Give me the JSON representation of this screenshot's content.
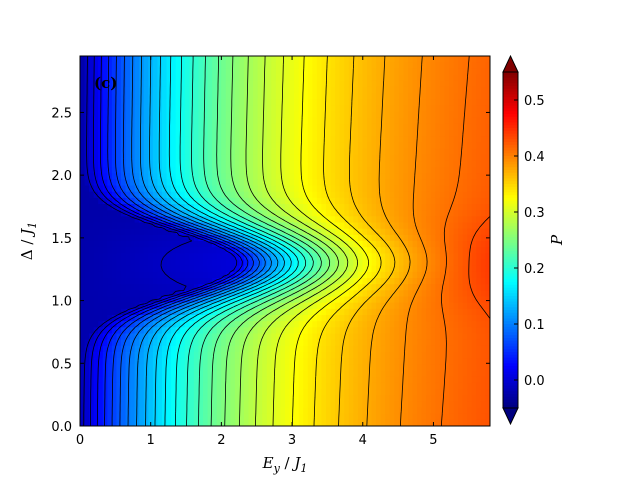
{
  "chart_data": {
    "type": "heatmap",
    "panel_label": "(c)",
    "xlabel": "E_y / J_1",
    "ylabel": "Δ / J_1",
    "colorbar_label": "P",
    "xlim": [
      0,
      5.8
    ],
    "ylim": [
      0,
      2.95
    ],
    "x_ticks": [
      0,
      1,
      2,
      3,
      4,
      5
    ],
    "x_tick_labels": [
      "0",
      "1",
      "2",
      "3",
      "4",
      "5"
    ],
    "y_ticks": [
      0.0,
      0.5,
      1.0,
      1.5,
      2.0,
      2.5
    ],
    "y_tick_labels": [
      "0.0",
      "0.5",
      "1.0",
      "1.5",
      "2.0",
      "2.5"
    ],
    "colorbar_ticks": [
      0.0,
      0.1,
      0.2,
      0.3,
      0.4,
      0.5
    ],
    "colorbar_tick_labels": [
      "0.0",
      "0.1",
      "0.2",
      "0.3",
      "0.4",
      "0.5"
    ],
    "color_range": [
      -0.05,
      0.55
    ],
    "colormap": "jet",
    "contour_color": "#000000",
    "features": {
      "band_center_delta": 1.3,
      "band_lower_edge_delta": 0.95,
      "band_upper_edge_delta": 1.63,
      "max_value_approx": 0.53,
      "max_location": [
        5.8,
        1.3
      ]
    },
    "grid": false,
    "legend": "colorbar-right"
  }
}
